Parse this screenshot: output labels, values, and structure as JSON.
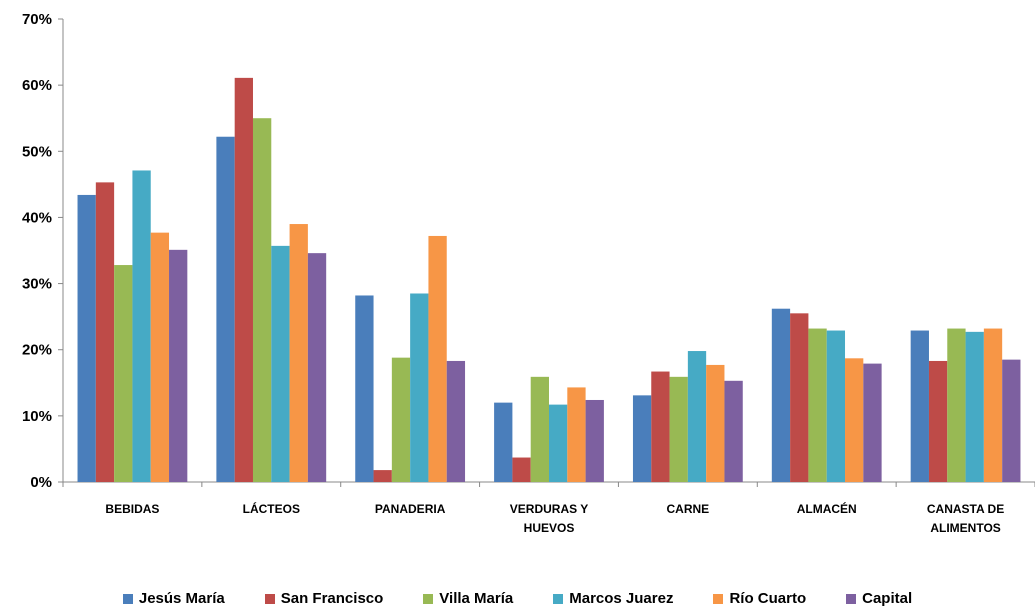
{
  "chart_data": {
    "type": "bar",
    "categories": [
      "BEBIDAS",
      "LÁCTEOS",
      "PANADERIA",
      "VERDURAS Y HUEVOS",
      "CARNE",
      "ALMACÉN",
      "CANASTA DE ALIMENTOS"
    ],
    "category_lines": [
      [
        "BEBIDAS"
      ],
      [
        "LÁCTEOS"
      ],
      [
        "PANADERIA"
      ],
      [
        "VERDURAS Y",
        "HUEVOS"
      ],
      [
        "CARNE"
      ],
      [
        "ALMACÉN"
      ],
      [
        "CANASTA DE",
        "ALIMENTOS"
      ]
    ],
    "series": [
      {
        "name": "Jesús María",
        "color": "#4a7ebb",
        "values": [
          43.4,
          52.2,
          28.2,
          12.0,
          13.1,
          26.2,
          22.9
        ]
      },
      {
        "name": "San Francisco",
        "color": "#be4b48",
        "values": [
          45.3,
          61.1,
          1.8,
          3.7,
          16.7,
          25.5,
          18.3
        ]
      },
      {
        "name": "Villa María",
        "color": "#98b954",
        "values": [
          32.8,
          55.0,
          18.8,
          15.9,
          15.9,
          23.2,
          23.2
        ]
      },
      {
        "name": "Marcos Juarez",
        "color": "#46aac5",
        "values": [
          47.1,
          35.7,
          28.5,
          11.7,
          19.8,
          22.9,
          22.7
        ]
      },
      {
        "name": "Río Cuarto",
        "color": "#f79646",
        "values": [
          37.7,
          39.0,
          37.2,
          14.3,
          17.7,
          18.7,
          23.2
        ]
      },
      {
        "name": "Capital",
        "color": "#7d60a0",
        "values": [
          35.1,
          34.6,
          18.3,
          12.4,
          15.3,
          17.9,
          18.5
        ]
      }
    ],
    "ylim": [
      0,
      70
    ],
    "yticks": [
      0,
      10,
      20,
      30,
      40,
      50,
      60,
      70
    ],
    "ytick_labels": [
      "0%",
      "10%",
      "20%",
      "30%",
      "40%",
      "50%",
      "60%",
      "70%"
    ],
    "grid": false,
    "legend_position": "bottom"
  }
}
